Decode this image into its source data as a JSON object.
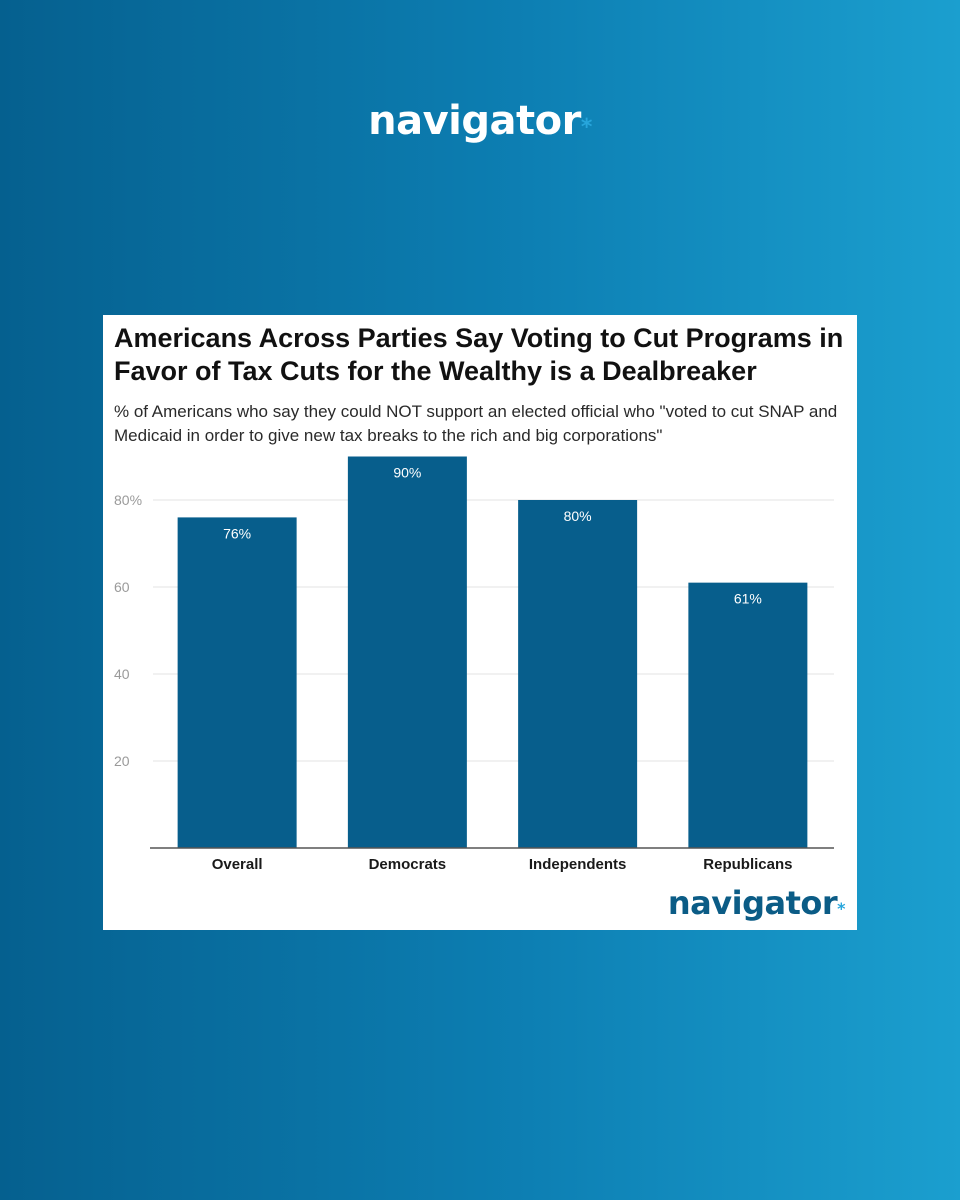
{
  "brand": {
    "logo_text": "navigator",
    "logo_mark": "*"
  },
  "colors": {
    "bar": "#075e8c",
    "brand_blue": "#0b5c86",
    "accent": "#27a6dc",
    "grid": "#e3e3e3",
    "axis": "#555555",
    "tick": "#9a9a9a"
  },
  "chart_data": {
    "type": "bar",
    "title": "Americans Across Parties Say Voting to Cut Programs in Favor of Tax Cuts for the Wealthy is a Dealbreaker",
    "subtitle": "% of Americans who say they could NOT support an elected official who \"voted to cut SNAP and Medicaid in order to give new tax breaks to the rich and big corporations\"",
    "categories": [
      "Overall",
      "Democrats",
      "Independents",
      "Republicans"
    ],
    "values": [
      76,
      90,
      80,
      61
    ],
    "data_labels": [
      "76%",
      "90%",
      "80%",
      "61%"
    ],
    "y_ticks": [
      {
        "value": 20,
        "label": "20"
      },
      {
        "value": 40,
        "label": "40"
      },
      {
        "value": 60,
        "label": "60"
      },
      {
        "value": 80,
        "label": "80%"
      }
    ],
    "ylim": [
      0,
      90
    ],
    "grid": true,
    "legend": "none"
  }
}
